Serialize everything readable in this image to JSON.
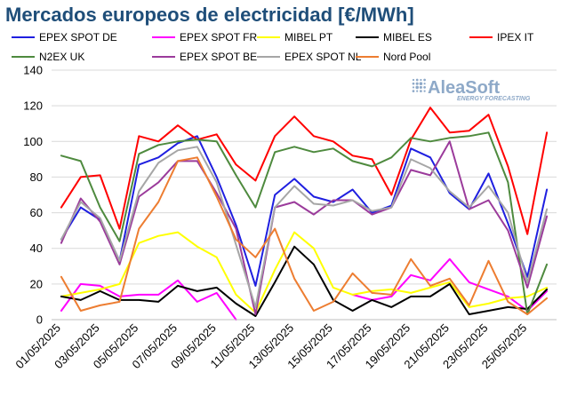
{
  "chart_data": {
    "type": "line",
    "title": "Mercados europeos de electricidad [€/MWh]",
    "xlabel": "",
    "ylabel": "",
    "ylim": [
      0,
      140
    ],
    "yticks": [
      0,
      20,
      40,
      60,
      80,
      100,
      120,
      140
    ],
    "grid": true,
    "legend_position": "top",
    "x": [
      "01/05/2025",
      "02/05/2025",
      "03/05/2025",
      "04/05/2025",
      "05/05/2025",
      "06/05/2025",
      "07/05/2025",
      "08/05/2025",
      "09/05/2025",
      "10/05/2025",
      "11/05/2025",
      "12/05/2025",
      "13/05/2025",
      "14/05/2025",
      "15/05/2025",
      "16/05/2025",
      "17/05/2025",
      "18/05/2025",
      "19/05/2025",
      "20/05/2025",
      "21/05/2025",
      "22/05/2025",
      "23/05/2025",
      "24/05/2025",
      "25/05/2025",
      "26/05/2025"
    ],
    "xtick_labels": [
      "01/05/2025",
      "03/05/2025",
      "05/05/2025",
      "07/05/2025",
      "09/05/2025",
      "11/05/2025",
      "13/05/2025",
      "15/05/2025",
      "17/05/2025",
      "19/05/2025",
      "21/05/2025",
      "23/05/2025",
      "25/05/2025"
    ],
    "series": [
      {
        "name": "EPEX SPOT DE",
        "color": "#1f1fe0",
        "values": [
          45,
          63,
          56,
          33,
          87,
          91,
          99,
          103,
          80,
          53,
          19,
          70,
          79,
          69,
          66,
          73,
          60,
          64,
          96,
          91,
          71,
          62,
          82,
          54,
          24,
          73
        ]
      },
      {
        "name": "EPEX SPOT FR",
        "color": "#ff00ff",
        "values": [
          5,
          20,
          19,
          13,
          14,
          14,
          22,
          10,
          15,
          0,
          null,
          null,
          null,
          null,
          null,
          14,
          11,
          13,
          25,
          22,
          34,
          21,
          17,
          13,
          5,
          16
        ]
      },
      {
        "name": "MIBEL PT",
        "color": "#ffff00",
        "values": [
          13,
          15,
          17,
          20,
          43,
          47,
          49,
          41,
          35,
          14,
          4,
          28,
          49,
          40,
          18,
          14,
          16,
          17,
          15,
          18,
          21,
          7,
          9,
          12,
          13,
          18
        ]
      },
      {
        "name": "MIBEL ES",
        "color": "#000000",
        "values": [
          13,
          11,
          16,
          11,
          11,
          10,
          19,
          16,
          18,
          9,
          2,
          21,
          41,
          31,
          11,
          5,
          11,
          7,
          13,
          13,
          20,
          3,
          5,
          7,
          6,
          17
        ]
      },
      {
        "name": "IPEX IT",
        "color": "#ff0000",
        "values": [
          63,
          80,
          81,
          51,
          103,
          100,
          109,
          101,
          104,
          87,
          78,
          103,
          114,
          103,
          100,
          92,
          90,
          70,
          101,
          119,
          105,
          106,
          115,
          86,
          48,
          105
        ]
      },
      {
        "name": "N2EX UK",
        "color": "#4e8a3e",
        "values": [
          92,
          89,
          63,
          44,
          93,
          98,
          100,
          101,
          100,
          81,
          63,
          94,
          97,
          94,
          96,
          89,
          86,
          91,
          102,
          100,
          102,
          103,
          105,
          77,
          3,
          31
        ]
      },
      {
        "name": "EPEX SPOT BE",
        "color": "#9b3b9b",
        "values": [
          43,
          68,
          55,
          31,
          69,
          77,
          89,
          89,
          71,
          51,
          3,
          63,
          66,
          59,
          67,
          67,
          59,
          63,
          84,
          81,
          100,
          62,
          67,
          50,
          18,
          58
        ]
      },
      {
        "name": "EPEX SPOT NL",
        "color": "#a6a6a6",
        "values": [
          45,
          66,
          57,
          33,
          72,
          88,
          95,
          97,
          77,
          42,
          7,
          63,
          75,
          65,
          64,
          67,
          61,
          63,
          90,
          85,
          72,
          63,
          75,
          60,
          21,
          62
        ]
      },
      {
        "name": "Nord Pool",
        "color": "#ed7d31",
        "values": [
          24,
          5,
          8,
          10,
          51,
          66,
          89,
          91,
          69,
          45,
          35,
          51,
          23,
          5,
          10,
          26,
          15,
          14,
          34,
          19,
          23,
          8,
          33,
          10,
          3,
          12
        ]
      }
    ]
  },
  "watermark": {
    "brand": "AleaSoft",
    "tagline": "ENERGY FORECASTING",
    "icon": "dot-grid-logo-icon",
    "color": "#8ea9c8"
  }
}
